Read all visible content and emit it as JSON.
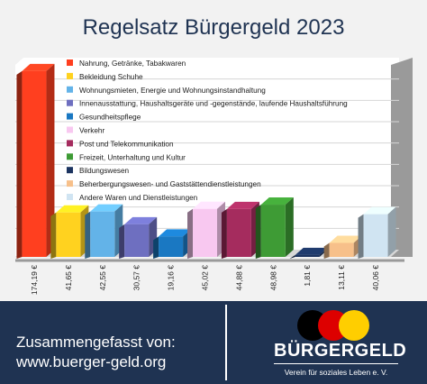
{
  "title": "Regelsatz Bürgergeld 2023",
  "chart_data": {
    "type": "bar",
    "ylim": [
      0,
      180
    ],
    "grid": true,
    "legend_position": "top-left",
    "categories": [
      "Nahrung, Getränke, Tabakwaren",
      "Bekleidung Schuhe",
      "Wohnungsmieten, Energie und Wohnungsinstandhaltung",
      "Innenausstattung, Haushaltsgeräte und -gegenstände, laufende Haushaltsführung",
      "Gesundheitspflege",
      "Verkehr",
      "Post und Telekommunikation",
      "Freizeit, Unterhaltung und Kultur",
      "Bildungswesen",
      "Beherbergungswesen- und Gaststättendienstleistungen",
      "Andere Waren und Dienstleistungen"
    ],
    "values": [
      174.19,
      41.65,
      42.55,
      30.57,
      19.16,
      45.02,
      44.88,
      48.98,
      1.81,
      13.11,
      40.06
    ],
    "value_labels": [
      "174,19 €",
      "41,65 €",
      "42,55 €",
      "30,57 €",
      "19,16 €",
      "45,02 €",
      "44,88 €",
      "48,98 €",
      "1,81 €",
      "13,11 €",
      "40,06 €"
    ],
    "colors": [
      "#ff3f1f",
      "#ffd21f",
      "#63b3e8",
      "#6e6fc0",
      "#1a78c2",
      "#f8c8f0",
      "#a52c5e",
      "#3e9b35",
      "#1c3460",
      "#f7c08a",
      "#d0e4f2"
    ]
  },
  "footer": {
    "line1": "Zusammengefasst von:",
    "line2": "www.buerger-geld.org",
    "brand": "BÜRGERGELD",
    "tagline": "Verein für soziales Leben e. V.",
    "flag_colors": [
      "#000000",
      "#dd0000",
      "#ffce00"
    ]
  }
}
